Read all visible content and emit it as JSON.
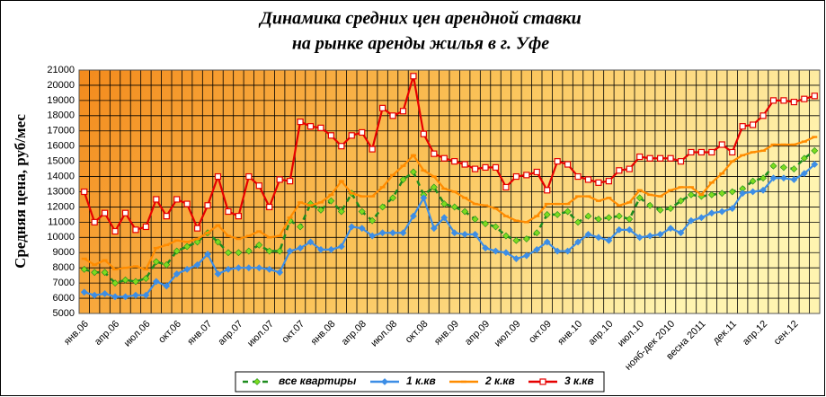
{
  "chart_data": {
    "type": "line",
    "title": [
      "Динамика средних цен арендной ставки",
      "на рынке аренды жилья в г. Уфе"
    ],
    "y_label": "Средняя цена, руб/мес",
    "categories": [
      "янв.06",
      null,
      null,
      "апр.06",
      null,
      null,
      "июл.06",
      null,
      null,
      "окт.06",
      null,
      null,
      "янв.07",
      null,
      null,
      "апр.07",
      null,
      null,
      "июл.07",
      null,
      null,
      "окт.07",
      null,
      null,
      "янв.08",
      null,
      null,
      "апр.08",
      null,
      null,
      "июл.08",
      null,
      null,
      "окт.08",
      null,
      null,
      "янв.09",
      null,
      null,
      "апр.09",
      null,
      null,
      "июл.09",
      null,
      null,
      "окт.09",
      null,
      null,
      "янв.10",
      null,
      null,
      "апр.10",
      null,
      null,
      "июл.10",
      null,
      null,
      "нояб-дек 2010",
      null,
      null,
      "весна 2011",
      null,
      null,
      "дек.11",
      null,
      null,
      "апр.12",
      null,
      null,
      "сен.12",
      null,
      null
    ],
    "series": [
      {
        "name": "все квартиры",
        "color": "#1e8c1e",
        "marker": "diamond",
        "marker_color": "#7ddc1f",
        "dashed": true,
        "values": [
          7900,
          7700,
          7700,
          7000,
          7200,
          7100,
          7300,
          8400,
          8200,
          9100,
          9400,
          9700,
          10300,
          9700,
          9000,
          9000,
          9100,
          9500,
          9100,
          9100,
          11100,
          10700,
          12200,
          11800,
          12400,
          11700,
          12900,
          11700,
          11100,
          12000,
          12600,
          13800,
          14300,
          12800,
          13300,
          12200,
          12000,
          11700,
          11200,
          10900,
          10700,
          10100,
          9800,
          9900,
          10300,
          11500,
          11500,
          11700,
          11000,
          11400,
          11200,
          11300,
          11400,
          11200,
          12600,
          12100,
          11800,
          11900,
          12400,
          12800,
          12700,
          12800,
          12900,
          13000,
          13200,
          13700,
          13900,
          14700,
          14600,
          14500,
          15200,
          15700
        ]
      },
      {
        "name": "1 к.кв",
        "color": "#3d8ee6",
        "marker": "diamond",
        "marker_color": "#3d8ee6",
        "values": [
          6400,
          6200,
          6300,
          6100,
          6100,
          6200,
          6200,
          7100,
          6800,
          7600,
          7900,
          8200,
          8900,
          7600,
          7900,
          8000,
          8000,
          8000,
          7900,
          7700,
          9100,
          9300,
          9700,
          9200,
          9200,
          9400,
          10700,
          10600,
          10100,
          10300,
          10300,
          10300,
          11400,
          12600,
          10600,
          11300,
          10300,
          10200,
          10200,
          9300,
          9100,
          9000,
          8600,
          8800,
          9200,
          9700,
          9100,
          9100,
          9700,
          10200,
          10000,
          9800,
          10500,
          10500,
          10000,
          10100,
          10200,
          10600,
          10300,
          11100,
          11300,
          11600,
          11700,
          11900,
          12900,
          13000,
          13100,
          13900,
          13900,
          13800,
          14200,
          14800
        ]
      },
      {
        "name": "2 к.кв",
        "color": "#ff8c00",
        "marker": "dash",
        "marker_color": "#ff8c00",
        "values": [
          8600,
          8200,
          8500,
          7900,
          8000,
          8100,
          7900,
          9300,
          9500,
          9800,
          9700,
          9900,
          10300,
          10800,
          10100,
          9900,
          10100,
          10400,
          10000,
          10100,
          11300,
          12300,
          12100,
          12300,
          12800,
          13700,
          12900,
          12700,
          12700,
          13300,
          14100,
          14700,
          15400,
          14400,
          14000,
          13200,
          13000,
          12600,
          12200,
          12100,
          11900,
          11400,
          11100,
          11000,
          11400,
          12200,
          12200,
          12200,
          12700,
          12700,
          12400,
          12600,
          12100,
          12300,
          13100,
          12800,
          12700,
          13100,
          13300,
          13300,
          12800,
          13600,
          14200,
          15000,
          15400,
          15600,
          15700,
          16100,
          16100,
          16100,
          16300,
          16600
        ]
      },
      {
        "name": "3 к.кв",
        "color": "#e60000",
        "marker": "square",
        "marker_color": "#ffffff",
        "values": [
          13000,
          11000,
          11600,
          10400,
          11600,
          10500,
          10700,
          12500,
          11400,
          12500,
          12200,
          10600,
          12100,
          14000,
          11700,
          11400,
          14000,
          13400,
          12000,
          13800,
          13700,
          17600,
          17300,
          17200,
          16700,
          16000,
          16700,
          16900,
          15800,
          18500,
          18000,
          18300,
          20600,
          16800,
          15500,
          15200,
          15000,
          14800,
          14500,
          14600,
          14600,
          13300,
          14000,
          14100,
          14300,
          13100,
          15000,
          14800,
          14000,
          13800,
          13600,
          13700,
          14400,
          14500,
          15300,
          15200,
          15200,
          15200,
          15000,
          15600,
          15600,
          15600,
          16100,
          15600,
          17300,
          17400,
          18000,
          19000,
          19000,
          18900,
          19100,
          19300
        ]
      }
    ],
    "ylim": [
      5000,
      21000
    ],
    "yticks": [
      5000,
      6000,
      7000,
      8000,
      9000,
      10000,
      11000,
      12000,
      13000,
      14000,
      15000,
      16000,
      17000,
      18000,
      19000,
      20000,
      21000
    ],
    "grid": true
  }
}
